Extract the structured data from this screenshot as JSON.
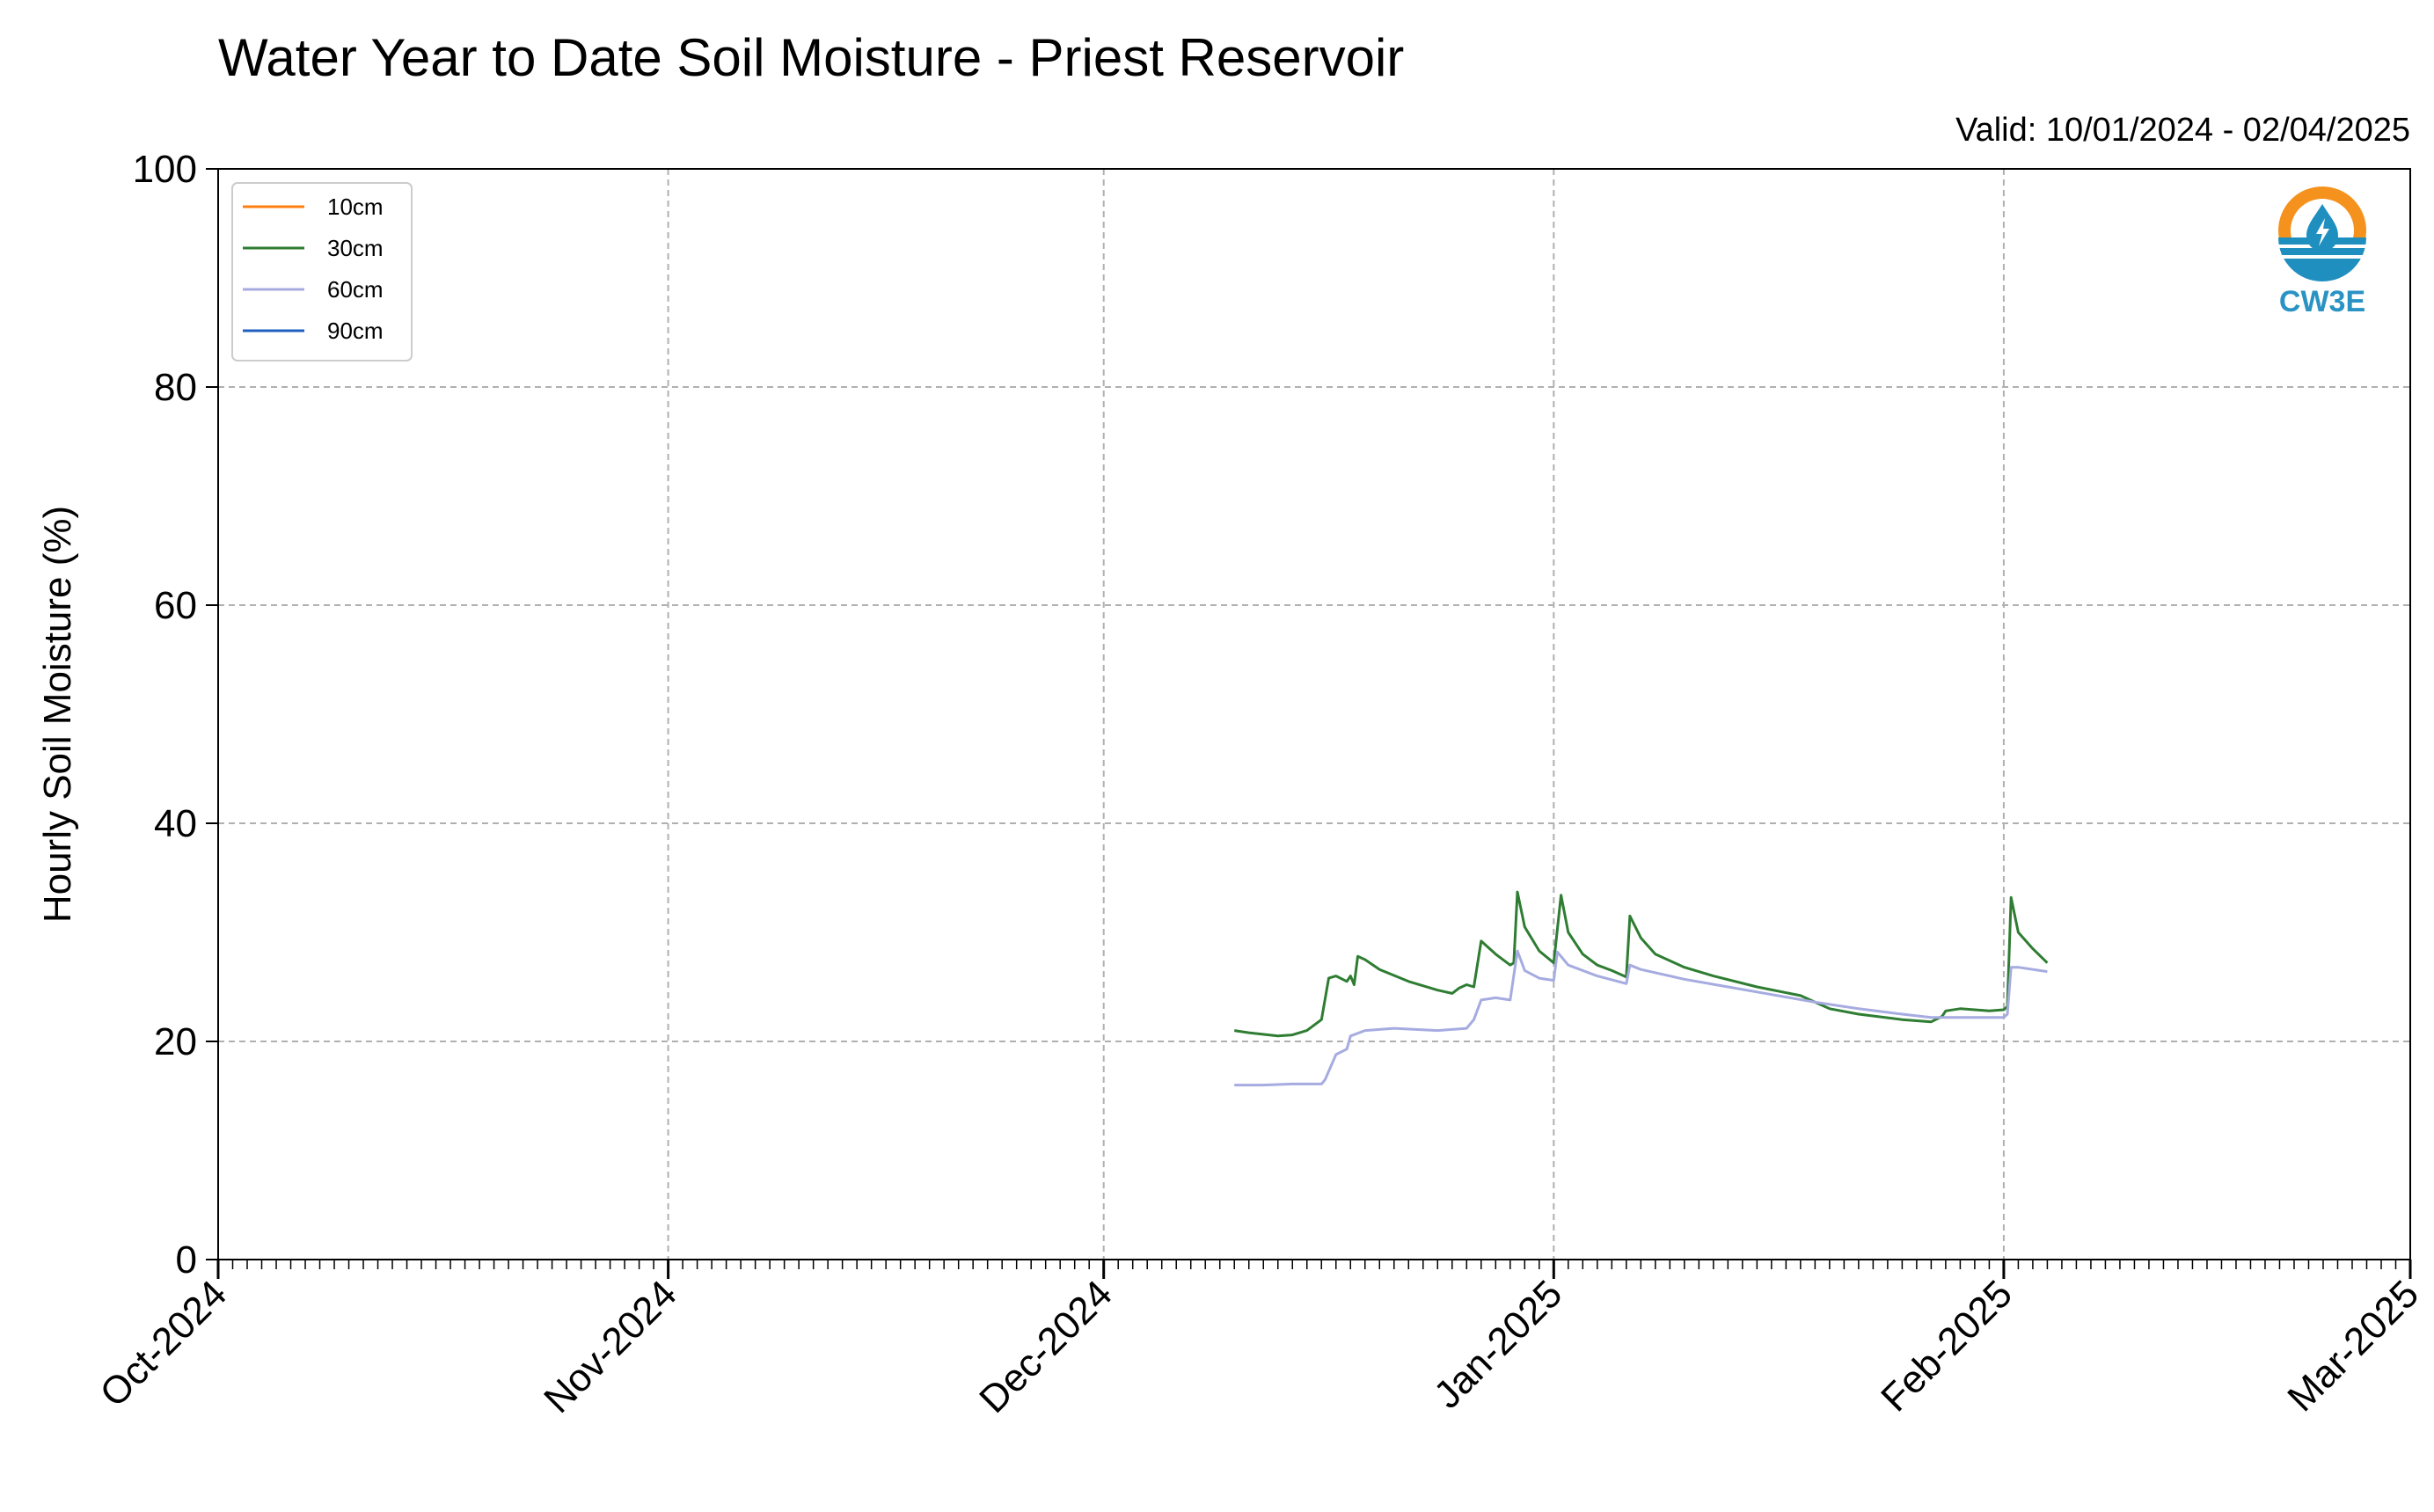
{
  "chart_data": {
    "type": "line",
    "title": "Water Year to Date Soil Moisture - Priest Reservoir",
    "subtitle": "Valid: 10/01/2024 - 02/04/2025",
    "xlabel": "",
    "ylabel": "Hourly Soil Moisture (%)",
    "ylim": [
      0,
      100
    ],
    "yticks": [
      "0",
      "20",
      "40",
      "60",
      "80",
      "100"
    ],
    "xlim": [
      "2024-10-01",
      "2025-03-01"
    ],
    "xtick_dates": [
      "2024-10-01",
      "2024-11-01",
      "2024-12-01",
      "2025-01-01",
      "2025-02-01",
      "2025-03-01"
    ],
    "xtick_labels": [
      "Oct-2024",
      "Nov-2024",
      "Dec-2024",
      "Jan-2025",
      "Feb-2025",
      "Mar-2025"
    ],
    "grid": true,
    "legend_position": "top-left",
    "series": [
      {
        "name": "10cm",
        "color": "#ff7f0e",
        "points": []
      },
      {
        "name": "30cm",
        "color": "#2e7d32",
        "points": [
          [
            "2024-12-10",
            21.0
          ],
          [
            "2024-12-11",
            20.8
          ],
          [
            "2024-12-13",
            20.5
          ],
          [
            "2024-12-14",
            20.6
          ],
          [
            "2024-12-15",
            21.0
          ],
          [
            "2024-12-16",
            22.0
          ],
          [
            "2024-12-16T12",
            25.8
          ],
          [
            "2024-12-17",
            26.0
          ],
          [
            "2024-12-17T18",
            25.5
          ],
          [
            "2024-12-18",
            26.0
          ],
          [
            "2024-12-18T06",
            25.2
          ],
          [
            "2024-12-18T12",
            27.8
          ],
          [
            "2024-12-19",
            27.5
          ],
          [
            "2024-12-20",
            26.6
          ],
          [
            "2024-12-22",
            25.5
          ],
          [
            "2024-12-24",
            24.7
          ],
          [
            "2024-12-25",
            24.4
          ],
          [
            "2024-12-25T12",
            24.9
          ],
          [
            "2024-12-26",
            25.2
          ],
          [
            "2024-12-26T12",
            25.0
          ],
          [
            "2024-12-27",
            29.2
          ],
          [
            "2024-12-28",
            28.0
          ],
          [
            "2024-12-29",
            27.0
          ],
          [
            "2024-12-29T06",
            27.2
          ],
          [
            "2024-12-29T12",
            33.7
          ],
          [
            "2024-12-30",
            30.5
          ],
          [
            "2024-12-31",
            28.3
          ],
          [
            "2025-01-01",
            27.2
          ],
          [
            "2025-01-01T12",
            33.4
          ],
          [
            "2025-01-02",
            30.0
          ],
          [
            "2025-01-03",
            28.0
          ],
          [
            "2025-01-04",
            27.0
          ],
          [
            "2025-01-05",
            26.5
          ],
          [
            "2025-01-06",
            25.9
          ],
          [
            "2025-01-06T06",
            31.5
          ],
          [
            "2025-01-07",
            29.5
          ],
          [
            "2025-01-08",
            28.0
          ],
          [
            "2025-01-10",
            26.8
          ],
          [
            "2025-01-12",
            26.0
          ],
          [
            "2025-01-15",
            25.0
          ],
          [
            "2025-01-18",
            24.2
          ],
          [
            "2025-01-19",
            23.6
          ],
          [
            "2025-01-20",
            23.0
          ],
          [
            "2025-01-22",
            22.5
          ],
          [
            "2025-01-25",
            22.0
          ],
          [
            "2025-01-27",
            21.8
          ],
          [
            "2025-01-27T18",
            22.3
          ],
          [
            "2025-01-28",
            22.8
          ],
          [
            "2025-01-29",
            23.0
          ],
          [
            "2025-01-31",
            22.8
          ],
          [
            "2025-02-01",
            22.9
          ],
          [
            "2025-02-01T06",
            23.2
          ],
          [
            "2025-02-01T12",
            33.2
          ],
          [
            "2025-02-02",
            30.0
          ],
          [
            "2025-02-03",
            28.5
          ],
          [
            "2025-02-04",
            27.2
          ]
        ]
      },
      {
        "name": "60cm",
        "color": "#a6abe0",
        "points": [
          [
            "2024-12-10",
            16.0
          ],
          [
            "2024-12-12",
            16.0
          ],
          [
            "2024-12-14",
            16.1
          ],
          [
            "2024-12-16",
            16.1
          ],
          [
            "2024-12-16T06",
            16.5
          ],
          [
            "2024-12-17",
            18.8
          ],
          [
            "2024-12-17T18",
            19.3
          ],
          [
            "2024-12-18",
            20.5
          ],
          [
            "2024-12-19",
            21.0
          ],
          [
            "2024-12-21",
            21.2
          ],
          [
            "2024-12-24",
            21.0
          ],
          [
            "2024-12-26",
            21.2
          ],
          [
            "2024-12-26T12",
            22.0
          ],
          [
            "2024-12-27",
            23.8
          ],
          [
            "2024-12-28",
            24.0
          ],
          [
            "2024-12-29",
            23.8
          ],
          [
            "2024-12-29T12",
            28.3
          ],
          [
            "2024-12-30",
            26.5
          ],
          [
            "2024-12-31",
            25.8
          ],
          [
            "2025-01-01",
            25.6
          ],
          [
            "2025-01-01T06",
            28.2
          ],
          [
            "2025-01-02",
            27.0
          ],
          [
            "2025-01-04",
            26.0
          ],
          [
            "2025-01-06",
            25.3
          ],
          [
            "2025-01-06T06",
            27.0
          ],
          [
            "2025-01-07",
            26.6
          ],
          [
            "2025-01-10",
            25.7
          ],
          [
            "2025-01-13",
            25.0
          ],
          [
            "2025-01-16",
            24.3
          ],
          [
            "2025-01-19",
            23.6
          ],
          [
            "2025-01-22",
            23.0
          ],
          [
            "2025-01-25",
            22.5
          ],
          [
            "2025-01-27",
            22.2
          ],
          [
            "2025-01-29",
            22.2
          ],
          [
            "2025-02-01",
            22.2
          ],
          [
            "2025-02-01T06",
            22.5
          ],
          [
            "2025-02-01T12",
            26.8
          ],
          [
            "2025-02-02",
            26.8
          ],
          [
            "2025-02-04",
            26.4
          ]
        ]
      },
      {
        "name": "90cm",
        "color": "#1f5fbf",
        "points": []
      }
    ]
  },
  "logo": {
    "text": "CW3E",
    "ring_color": "#f5921e",
    "water_color": "#1f8fbf",
    "text_color": "#2a93c4"
  }
}
